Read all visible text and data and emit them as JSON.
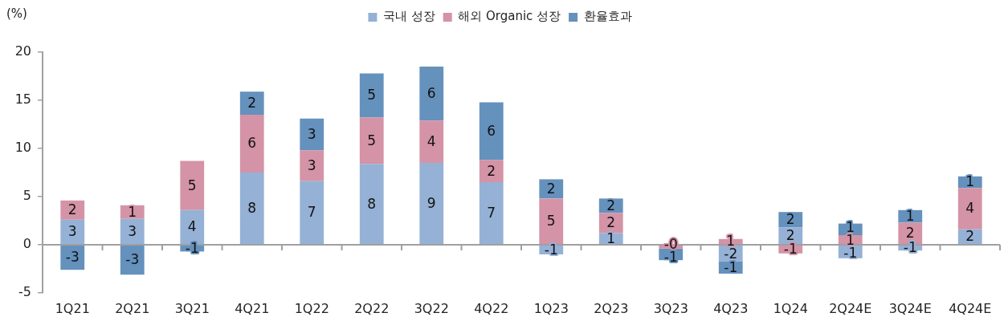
{
  "chart_data": {
    "type": "bar",
    "stacked": true,
    "ylabel": "(%)",
    "categories": [
      "1Q21",
      "2Q21",
      "3Q21",
      "4Q21",
      "1Q22",
      "2Q22",
      "3Q22",
      "4Q22",
      "1Q23",
      "2Q23",
      "3Q23",
      "4Q23",
      "1Q24",
      "2Q24E",
      "3Q24E",
      "4Q24E"
    ],
    "series": [
      {
        "name": "국내 성장",
        "color": "#95b1d6",
        "values": [
          2.6,
          2.7,
          3.6,
          7.5,
          6.6,
          8.4,
          8.5,
          6.5,
          -1.0,
          1.2,
          null,
          -1.7,
          1.8,
          -1.4,
          -0.6,
          1.6
        ],
        "value_labels": [
          "3",
          "3",
          "4",
          "8",
          "7",
          "8",
          "9",
          "7",
          "-1",
          "1",
          null,
          "-2",
          "2",
          "-1",
          "-1",
          "2"
        ]
      },
      {
        "name": "해외 Organic 성장",
        "color": "#d493a6",
        "values": [
          2.0,
          1.4,
          5.1,
          6.0,
          3.2,
          4.8,
          4.4,
          2.3,
          4.8,
          2.1,
          -0.4,
          0.6,
          -0.9,
          1.0,
          2.3,
          4.3
        ],
        "value_labels": [
          "2",
          "1",
          "5",
          "6",
          "3",
          "5",
          "4",
          "2",
          "5",
          "2",
          "-0",
          "1",
          "-1",
          "1",
          "2",
          "4"
        ]
      },
      {
        "name": "환율효과",
        "color": "#6591bd",
        "values": [
          -2.6,
          -3.1,
          -0.7,
          2.4,
          3.3,
          4.6,
          5.6,
          6.0,
          2.0,
          1.5,
          -1.2,
          -1.3,
          1.6,
          1.2,
          1.3,
          1.2
        ],
        "value_labels": [
          "-3",
          "-3",
          "-1",
          "2",
          "3",
          "5",
          "6",
          "6",
          "2",
          "2",
          "-1",
          "-1",
          "2",
          "1",
          "1",
          "1"
        ]
      }
    ],
    "ylim": [
      -5,
      20
    ],
    "yticks": [
      -5,
      0,
      5,
      10,
      15,
      20
    ],
    "legend": "top"
  }
}
